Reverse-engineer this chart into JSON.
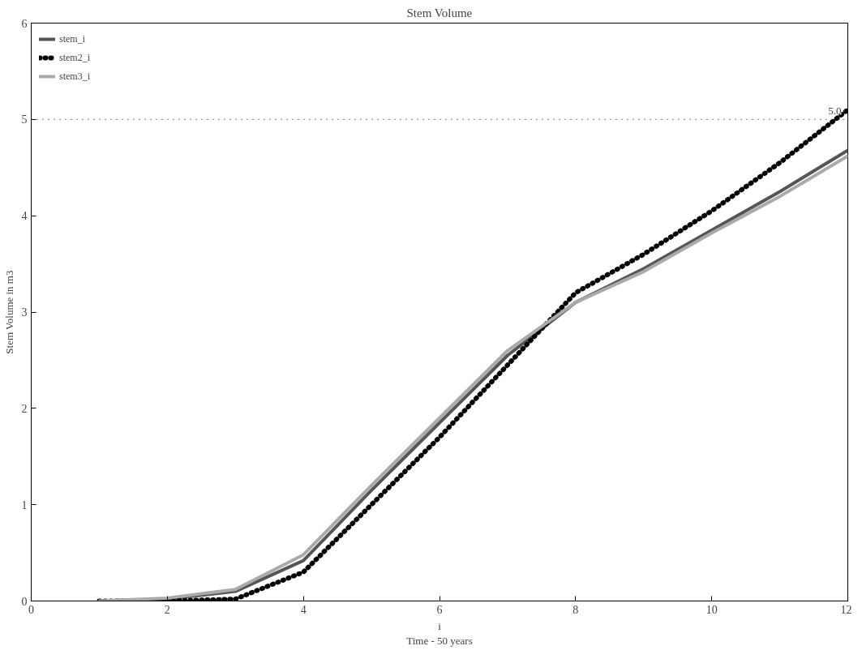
{
  "chart_data": {
    "type": "line",
    "title": "Stem Volume",
    "xlabel": "i\nTime - 50 years",
    "ylabel": "Stem Volume in m3",
    "x": [
      1,
      2,
      3,
      4,
      5,
      6,
      7,
      8,
      9,
      10,
      11,
      12
    ],
    "series": [
      {
        "name": "stem_i",
        "color": "#555555",
        "line_style": "solid",
        "values": [
          0,
          0.02,
          0.1,
          0.42,
          1.15,
          1.85,
          2.55,
          3.1,
          3.45,
          3.85,
          4.25,
          4.68
        ]
      },
      {
        "name": "stem2_i",
        "color": "#000000",
        "line_style": "dotted",
        "values": [
          0,
          0,
          0.02,
          0.3,
          1.0,
          1.7,
          2.45,
          3.2,
          3.6,
          4.05,
          4.55,
          5.1
        ]
      },
      {
        "name": "stem3_i",
        "color": "#aaaaaa",
        "line_style": "solid",
        "values": [
          0,
          0.03,
          0.12,
          0.48,
          1.2,
          1.9,
          2.6,
          3.1,
          3.42,
          3.82,
          4.2,
          4.62
        ]
      }
    ],
    "xlim": [
      0,
      12
    ],
    "ylim": [
      0,
      6
    ],
    "xticks": [
      0,
      2,
      4,
      6,
      8,
      10,
      12
    ],
    "yticks": [
      0,
      1,
      2,
      3,
      4,
      5,
      6
    ],
    "ref_lines": [
      {
        "axis": "y",
        "value": 5,
        "label": "5.0",
        "line_style": "dotted",
        "color": "#000000"
      }
    ],
    "grid": false,
    "legend": "top left",
    "marker": "none"
  }
}
